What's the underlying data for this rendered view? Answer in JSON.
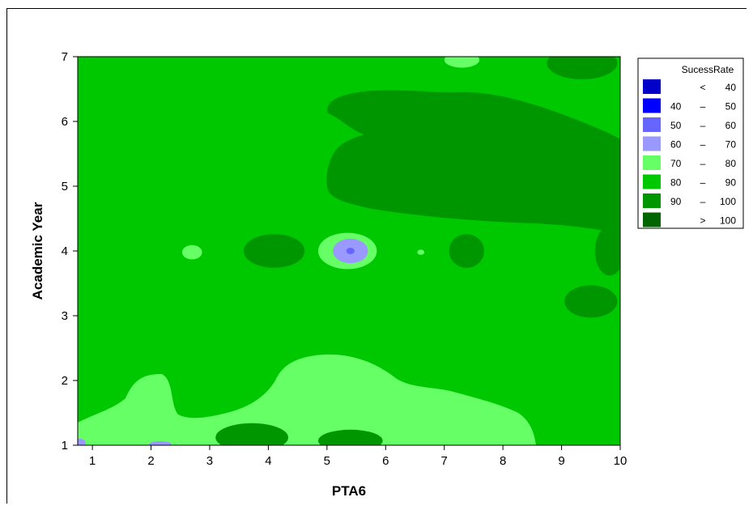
{
  "chart_data": {
    "type": "contour",
    "xlabel": "PTA6",
    "ylabel": "Academic Year",
    "xlim": [
      0.75,
      10
    ],
    "ylim": [
      1,
      7
    ],
    "x_ticks": [
      "1",
      "2",
      "3",
      "4",
      "5",
      "6",
      "7",
      "8",
      "9",
      "10"
    ],
    "y_ticks": [
      "1",
      "2",
      "3",
      "4",
      "5",
      "6",
      "7"
    ],
    "legend": {
      "title": "SucessRate",
      "position": "right",
      "levels": [
        {
          "op": "<",
          "low": "",
          "high": "40",
          "color": "#0000c8"
        },
        {
          "op": "–",
          "low": "40",
          "high": "50",
          "color": "#0000ff"
        },
        {
          "op": "–",
          "low": "50",
          "high": "60",
          "color": "#6666ff"
        },
        {
          "op": "–",
          "low": "60",
          "high": "70",
          "color": "#9999ff"
        },
        {
          "op": "–",
          "low": "70",
          "high": "80",
          "color": "#66ff66"
        },
        {
          "op": "–",
          "low": "80",
          "high": "90",
          "color": "#00c800"
        },
        {
          "op": "–",
          "low": "90",
          "high": "100",
          "color": "#009600"
        },
        {
          "op": ">",
          "low": "",
          "high": "100",
          "color": "#006400"
        }
      ]
    },
    "background_level": "80-90",
    "regions": [
      {
        "level": "90-100",
        "cx": 9.35,
        "cy": 6.9,
        "rx": 0.6,
        "ry": 0.25
      },
      {
        "level": "70-80",
        "cx": 7.3,
        "cy": 6.95,
        "rx": 0.3,
        "ry": 0.12
      },
      {
        "level": "90-100",
        "cx": 4.1,
        "cy": 4.0,
        "rx": 0.52,
        "ry": 0.26
      },
      {
        "level": "70-80",
        "cx": 5.35,
        "cy": 4.0,
        "rx": 0.5,
        "ry": 0.28
      },
      {
        "level": "60-70",
        "cx": 5.4,
        "cy": 4.0,
        "rx": 0.3,
        "ry": 0.19
      },
      {
        "level": "50-60",
        "cx": 5.4,
        "cy": 4.0,
        "rx": 0.07,
        "ry": 0.05
      },
      {
        "level": "70-80",
        "cx": 2.7,
        "cy": 3.98,
        "rx": 0.17,
        "ry": 0.11
      },
      {
        "level": "70-80",
        "cx": 6.6,
        "cy": 3.98,
        "rx": 0.06,
        "ry": 0.04
      },
      {
        "level": "90-100",
        "cx": 7.38,
        "cy": 4.0,
        "rx": 0.3,
        "ry": 0.26
      },
      {
        "level": "90-100",
        "cx": 9.82,
        "cy": 4.0,
        "rx": 0.25,
        "ry": 0.38
      },
      {
        "level": "90-100",
        "cx": 9.5,
        "cy": 3.22,
        "rx": 0.45,
        "ry": 0.25
      },
      {
        "level": "90-100",
        "cx": 3.72,
        "cy": 1.12,
        "rx": 0.62,
        "ry": 0.22
      },
      {
        "level": "90-100",
        "cx": 5.4,
        "cy": 1.07,
        "rx": 0.55,
        "ry": 0.17
      }
    ]
  }
}
